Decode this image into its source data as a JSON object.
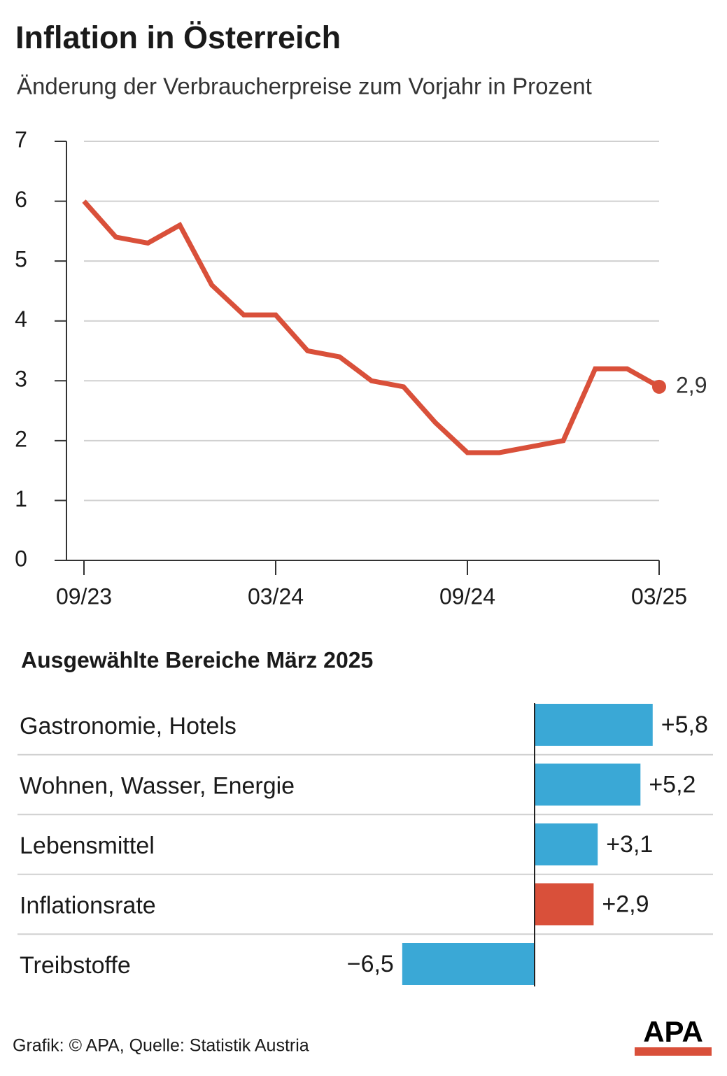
{
  "chart_data": [
    {
      "type": "line",
      "title": "Inflation in Österreich",
      "subtitle": "Änderung der Verbraucherpreise zum Vorjahr in Prozent",
      "categories": [
        "09/23",
        null,
        null,
        null,
        null,
        null,
        "03/24",
        null,
        null,
        null,
        null,
        null,
        "09/24",
        null,
        null,
        null,
        null,
        null,
        "03/25"
      ],
      "values": [
        6.0,
        5.4,
        5.3,
        5.6,
        4.6,
        4.1,
        4.1,
        3.5,
        3.4,
        3.0,
        2.9,
        2.3,
        1.8,
        1.8,
        1.9,
        2.0,
        3.2,
        3.2,
        2.9
      ],
      "value_labels": [
        null,
        null,
        null,
        null,
        null,
        null,
        null,
        null,
        null,
        null,
        null,
        null,
        null,
        null,
        null,
        null,
        null,
        null,
        "2,9"
      ],
      "color": "#d9503a",
      "ylim": [
        0,
        7
      ],
      "yticks": [
        0,
        1,
        2,
        3,
        4,
        5,
        6,
        7
      ],
      "grid": true
    },
    {
      "type": "hbar",
      "title": "Ausgewählte Bereiche März 2025",
      "categories": [
        "Gastronomie, Hotels",
        "Wohnen, Wasser, Energie",
        "Lebensmittel",
        "Inflationsrate",
        "Treibstoffe"
      ],
      "values": [
        5.8,
        5.2,
        3.1,
        2.9,
        -6.5
      ],
      "value_labels": [
        "+5,8",
        "+5,2",
        "+3,1",
        "+2,9",
        "−6,5"
      ],
      "colors": [
        "#3aa8d6",
        "#3aa8d6",
        "#3aa8d6",
        "#d9503a",
        "#3aa8d6"
      ]
    }
  ],
  "footer": {
    "source": "Grafik: © APA, Quelle: Statistik Austria",
    "logo": "APA"
  }
}
